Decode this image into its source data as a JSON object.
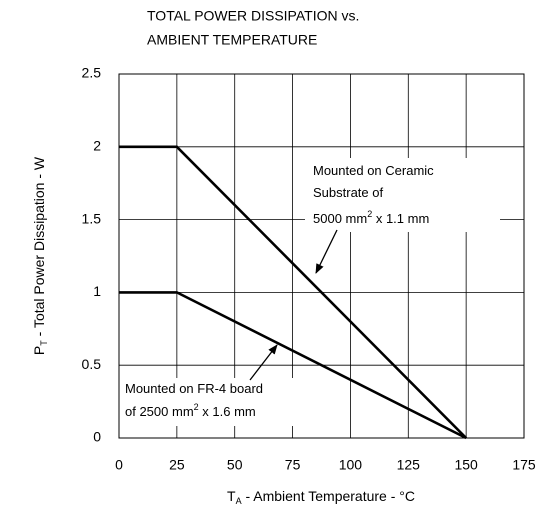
{
  "chart_data": {
    "type": "line",
    "title": [
      "TOTAL POWER DISSIPATION vs.",
      "AMBIENT TEMPERATURE"
    ],
    "xlabel": [
      "T",
      "A",
      " - Ambient Temperature - °C"
    ],
    "ylabel": [
      "P",
      "T",
      " - Total Power Dissipation - W"
    ],
    "xlim": [
      0,
      175
    ],
    "xticks": [
      0,
      25,
      50,
      75,
      100,
      125,
      150,
      175
    ],
    "ylim": [
      0,
      2.5
    ],
    "yticks": [
      0,
      0.5,
      1,
      1.5,
      2,
      2.5
    ],
    "grid": true,
    "series": [
      {
        "x": [
          0,
          25,
          150
        ],
        "values": [
          2,
          2,
          0
        ],
        "color": "#000000"
      },
      {
        "x": [
          0,
          25,
          150
        ],
        "values": [
          1,
          1,
          0
        ],
        "color": "#000000"
      }
    ],
    "annotations": [
      {
        "lines": [
          [
            "Mounted on Ceramic"
          ],
          [
            "Substrate of"
          ],
          [
            "5000 mm",
            "2",
            " x 1.1 mm"
          ]
        ]
      },
      {
        "lines": [
          [
            "Mounted on FR-4 board"
          ],
          [
            "of 2500 mm",
            "2",
            " x 1.6 mm"
          ]
        ]
      }
    ]
  }
}
